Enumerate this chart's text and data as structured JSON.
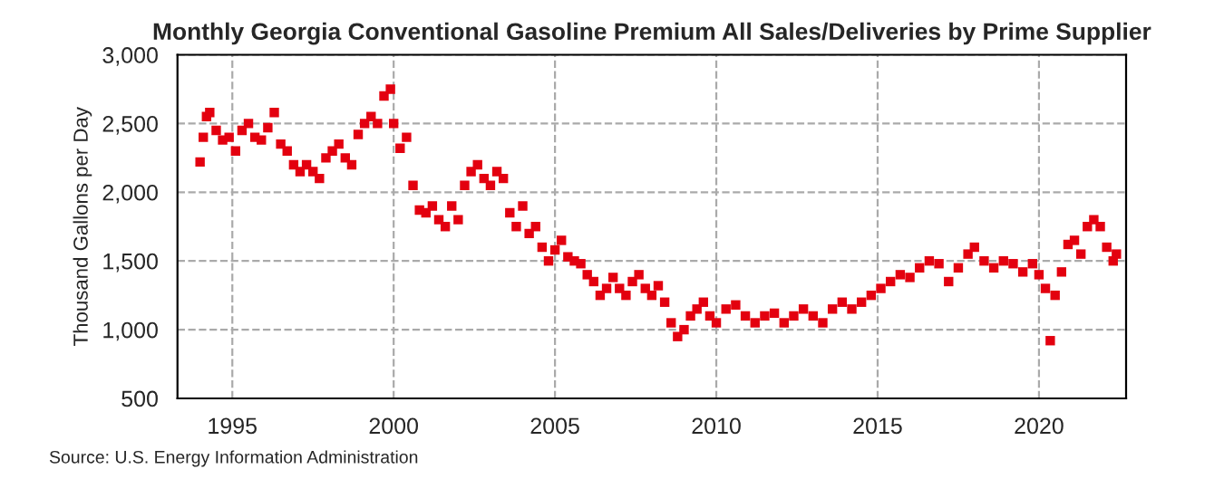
{
  "chart_data": {
    "type": "scatter",
    "title": "Monthly Georgia Conventional Gasoline Premium All Sales/Deliveries by Prime Supplier",
    "ylabel": "Thousand Gallons per Day",
    "annotations": [
      "Source: U.S. Energy Information Administration"
    ],
    "marker": "square",
    "grid": true,
    "xlim": [
      1993.3,
      2022.7
    ],
    "xticks": [
      1995,
      2000,
      2005,
      2010,
      2015,
      2020
    ],
    "ylim": [
      500,
      3000
    ],
    "yticks": [
      {
        "value": 500,
        "label": "500"
      },
      {
        "value": 1000,
        "label": "1,000"
      },
      {
        "value": 1500,
        "label": "1,500"
      },
      {
        "value": 2000,
        "label": "2,000"
      },
      {
        "value": 2500,
        "label": "2,500"
      },
      {
        "value": 3000,
        "label": "3,000"
      }
    ],
    "series": [
      {
        "color": "#e3000f",
        "x": [
          1994.0,
          1994.1,
          1994.2,
          1994.3,
          1994.5,
          1994.7,
          1994.9,
          1995.1,
          1995.3,
          1995.5,
          1995.7,
          1995.9,
          1996.1,
          1996.3,
          1996.5,
          1996.7,
          1996.9,
          1997.1,
          1997.3,
          1997.5,
          1997.7,
          1997.9,
          1998.1,
          1998.3,
          1998.5,
          1998.7,
          1998.9,
          1999.1,
          1999.3,
          1999.5,
          1999.7,
          1999.9,
          2000.0,
          2000.2,
          2000.4,
          2000.6,
          2000.8,
          2001.0,
          2001.2,
          2001.4,
          2001.6,
          2001.8,
          2002.0,
          2002.2,
          2002.4,
          2002.6,
          2002.8,
          2003.0,
          2003.2,
          2003.4,
          2003.6,
          2003.8,
          2004.0,
          2004.2,
          2004.4,
          2004.6,
          2004.8,
          2005.0,
          2005.2,
          2005.4,
          2005.6,
          2005.8,
          2006.0,
          2006.2,
          2006.4,
          2006.6,
          2006.8,
          2007.0,
          2007.2,
          2007.4,
          2007.6,
          2007.8,
          2008.0,
          2008.2,
          2008.4,
          2008.6,
          2008.8,
          2009.0,
          2009.2,
          2009.4,
          2009.6,
          2009.8,
          2010.0,
          2010.3,
          2010.6,
          2010.9,
          2011.2,
          2011.5,
          2011.8,
          2012.1,
          2012.4,
          2012.7,
          2013.0,
          2013.3,
          2013.6,
          2013.9,
          2014.2,
          2014.5,
          2014.8,
          2015.1,
          2015.4,
          2015.7,
          2016.0,
          2016.3,
          2016.6,
          2016.9,
          2017.2,
          2017.5,
          2017.8,
          2018.0,
          2018.3,
          2018.6,
          2018.9,
          2019.2,
          2019.5,
          2019.8,
          2020.0,
          2020.2,
          2020.35,
          2020.5,
          2020.7,
          2020.9,
          2021.1,
          2021.3,
          2021.5,
          2021.7,
          2021.9,
          2022.1,
          2022.3,
          2022.4
        ],
        "values": [
          2220,
          2400,
          2550,
          2580,
          2450,
          2380,
          2400,
          2300,
          2450,
          2500,
          2400,
          2380,
          2470,
          2580,
          2350,
          2300,
          2200,
          2150,
          2200,
          2150,
          2100,
          2250,
          2300,
          2350,
          2250,
          2200,
          2420,
          2500,
          2550,
          2500,
          2700,
          2750,
          2500,
          2320,
          2400,
          2050,
          1870,
          1850,
          1900,
          1800,
          1750,
          1900,
          1800,
          2050,
          2150,
          2200,
          2100,
          2050,
          2150,
          2100,
          1850,
          1750,
          1900,
          1700,
          1750,
          1600,
          1500,
          1580,
          1650,
          1530,
          1500,
          1480,
          1400,
          1350,
          1250,
          1300,
          1380,
          1300,
          1250,
          1350,
          1400,
          1300,
          1250,
          1320,
          1200,
          1050,
          950,
          1000,
          1100,
          1150,
          1200,
          1100,
          1050,
          1150,
          1180,
          1100,
          1050,
          1100,
          1120,
          1050,
          1100,
          1150,
          1100,
          1050,
          1150,
          1200,
          1150,
          1200,
          1250,
          1300,
          1350,
          1400,
          1380,
          1450,
          1500,
          1480,
          1350,
          1450,
          1550,
          1600,
          1500,
          1450,
          1500,
          1480,
          1420,
          1480,
          1400,
          1300,
          920,
          1250,
          1420,
          1620,
          1650,
          1550,
          1750,
          1800,
          1750,
          1600,
          1500,
          1550
        ]
      }
    ]
  }
}
